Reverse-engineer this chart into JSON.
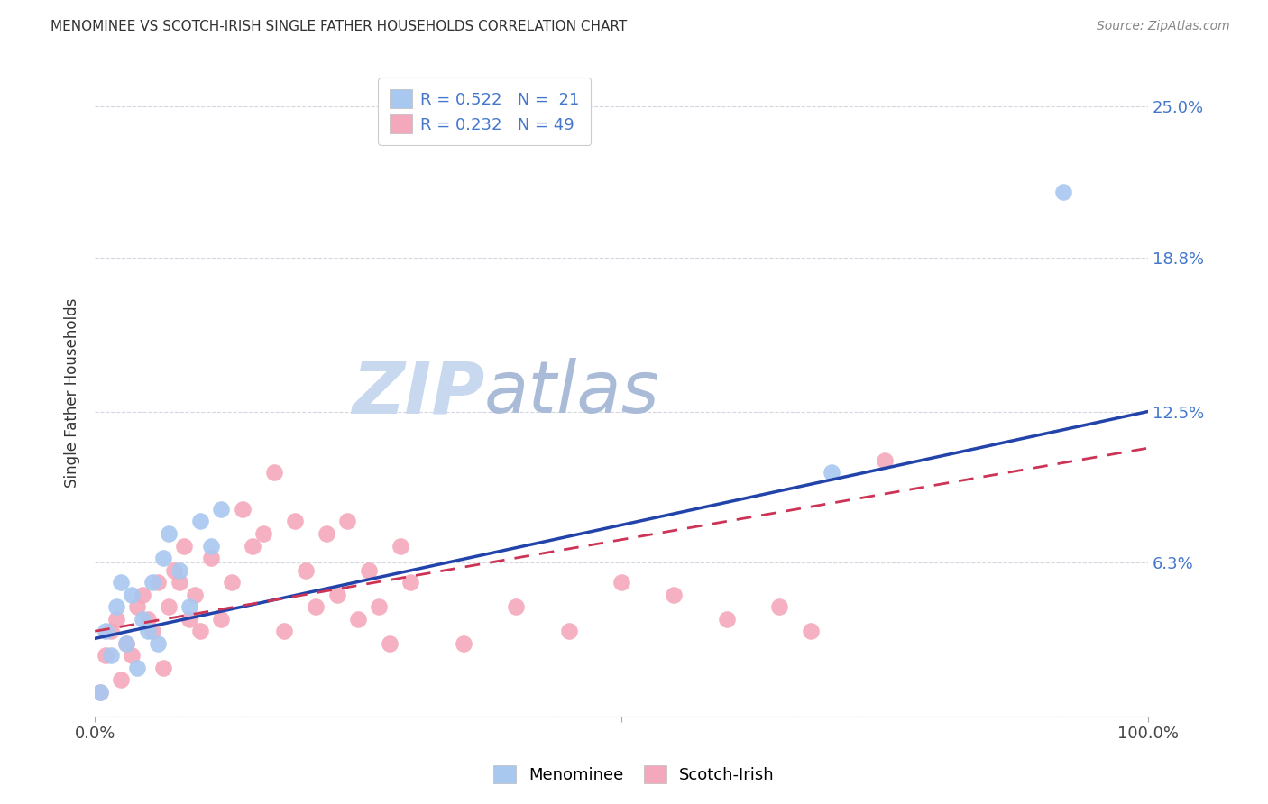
{
  "title": "MENOMINEE VS SCOTCH-IRISH SINGLE FATHER HOUSEHOLDS CORRELATION CHART",
  "source": "Source: ZipAtlas.com",
  "ylabel": "Single Father Households",
  "xlim": [
    0,
    100
  ],
  "ylim": [
    0,
    26.5
  ],
  "yticks": [
    0,
    6.3,
    12.5,
    18.8,
    25.0
  ],
  "ytick_labels": [
    "",
    "6.3%",
    "12.5%",
    "18.8%",
    "25.0%"
  ],
  "xtick_labels": [
    "0.0%",
    "100.0%"
  ],
  "legend_r1": "R = 0.522",
  "legend_n1": "N =  21",
  "legend_r2": "R = 0.232",
  "legend_n2": "N = 49",
  "color_blue": "#A8C8F0",
  "color_pink": "#F4A8BC",
  "color_blue_text": "#4477CC",
  "line_blue": "#2244AA",
  "line_pink": "#CC3355",
  "watermark_zip_color": "#C8D8EE",
  "watermark_atlas_color": "#AABBD8",
  "background_color": "#FFFFFF",
  "menominee_x": [
    0.5,
    1.0,
    1.5,
    2.0,
    2.5,
    3.0,
    3.5,
    4.0,
    4.5,
    5.0,
    5.5,
    6.0,
    6.5,
    7.0,
    8.0,
    9.0,
    10.0,
    11.0,
    12.0,
    70.0,
    92.0
  ],
  "menominee_y": [
    1.0,
    3.5,
    2.5,
    4.5,
    5.5,
    3.0,
    5.0,
    2.0,
    4.0,
    3.5,
    5.5,
    3.0,
    6.5,
    7.5,
    6.0,
    4.5,
    8.0,
    7.0,
    8.5,
    10.0,
    21.5
  ],
  "scotchirish_x": [
    0.5,
    1.0,
    1.5,
    2.0,
    2.5,
    3.0,
    3.5,
    4.0,
    4.5,
    5.0,
    5.5,
    6.0,
    6.5,
    7.0,
    7.5,
    8.0,
    8.5,
    9.0,
    9.5,
    10.0,
    11.0,
    12.0,
    13.0,
    14.0,
    15.0,
    16.0,
    17.0,
    18.0,
    19.0,
    20.0,
    21.0,
    22.0,
    23.0,
    24.0,
    25.0,
    26.0,
    27.0,
    28.0,
    29.0,
    30.0,
    35.0,
    40.0,
    45.0,
    50.0,
    55.0,
    60.0,
    65.0,
    68.0,
    75.0
  ],
  "scotchirish_y": [
    1.0,
    2.5,
    3.5,
    4.0,
    1.5,
    3.0,
    2.5,
    4.5,
    5.0,
    4.0,
    3.5,
    5.5,
    2.0,
    4.5,
    6.0,
    5.5,
    7.0,
    4.0,
    5.0,
    3.5,
    6.5,
    4.0,
    5.5,
    8.5,
    7.0,
    7.5,
    10.0,
    3.5,
    8.0,
    6.0,
    4.5,
    7.5,
    5.0,
    8.0,
    4.0,
    6.0,
    4.5,
    3.0,
    7.0,
    5.5,
    3.0,
    4.5,
    3.5,
    5.5,
    5.0,
    4.0,
    4.5,
    3.5,
    10.5
  ],
  "blue_line_x0": 0,
  "blue_line_y0": 3.2,
  "blue_line_x1": 100,
  "blue_line_y1": 12.5,
  "pink_line_x0": 0,
  "pink_line_y0": 3.5,
  "pink_line_x1": 100,
  "pink_line_y1": 11.0
}
